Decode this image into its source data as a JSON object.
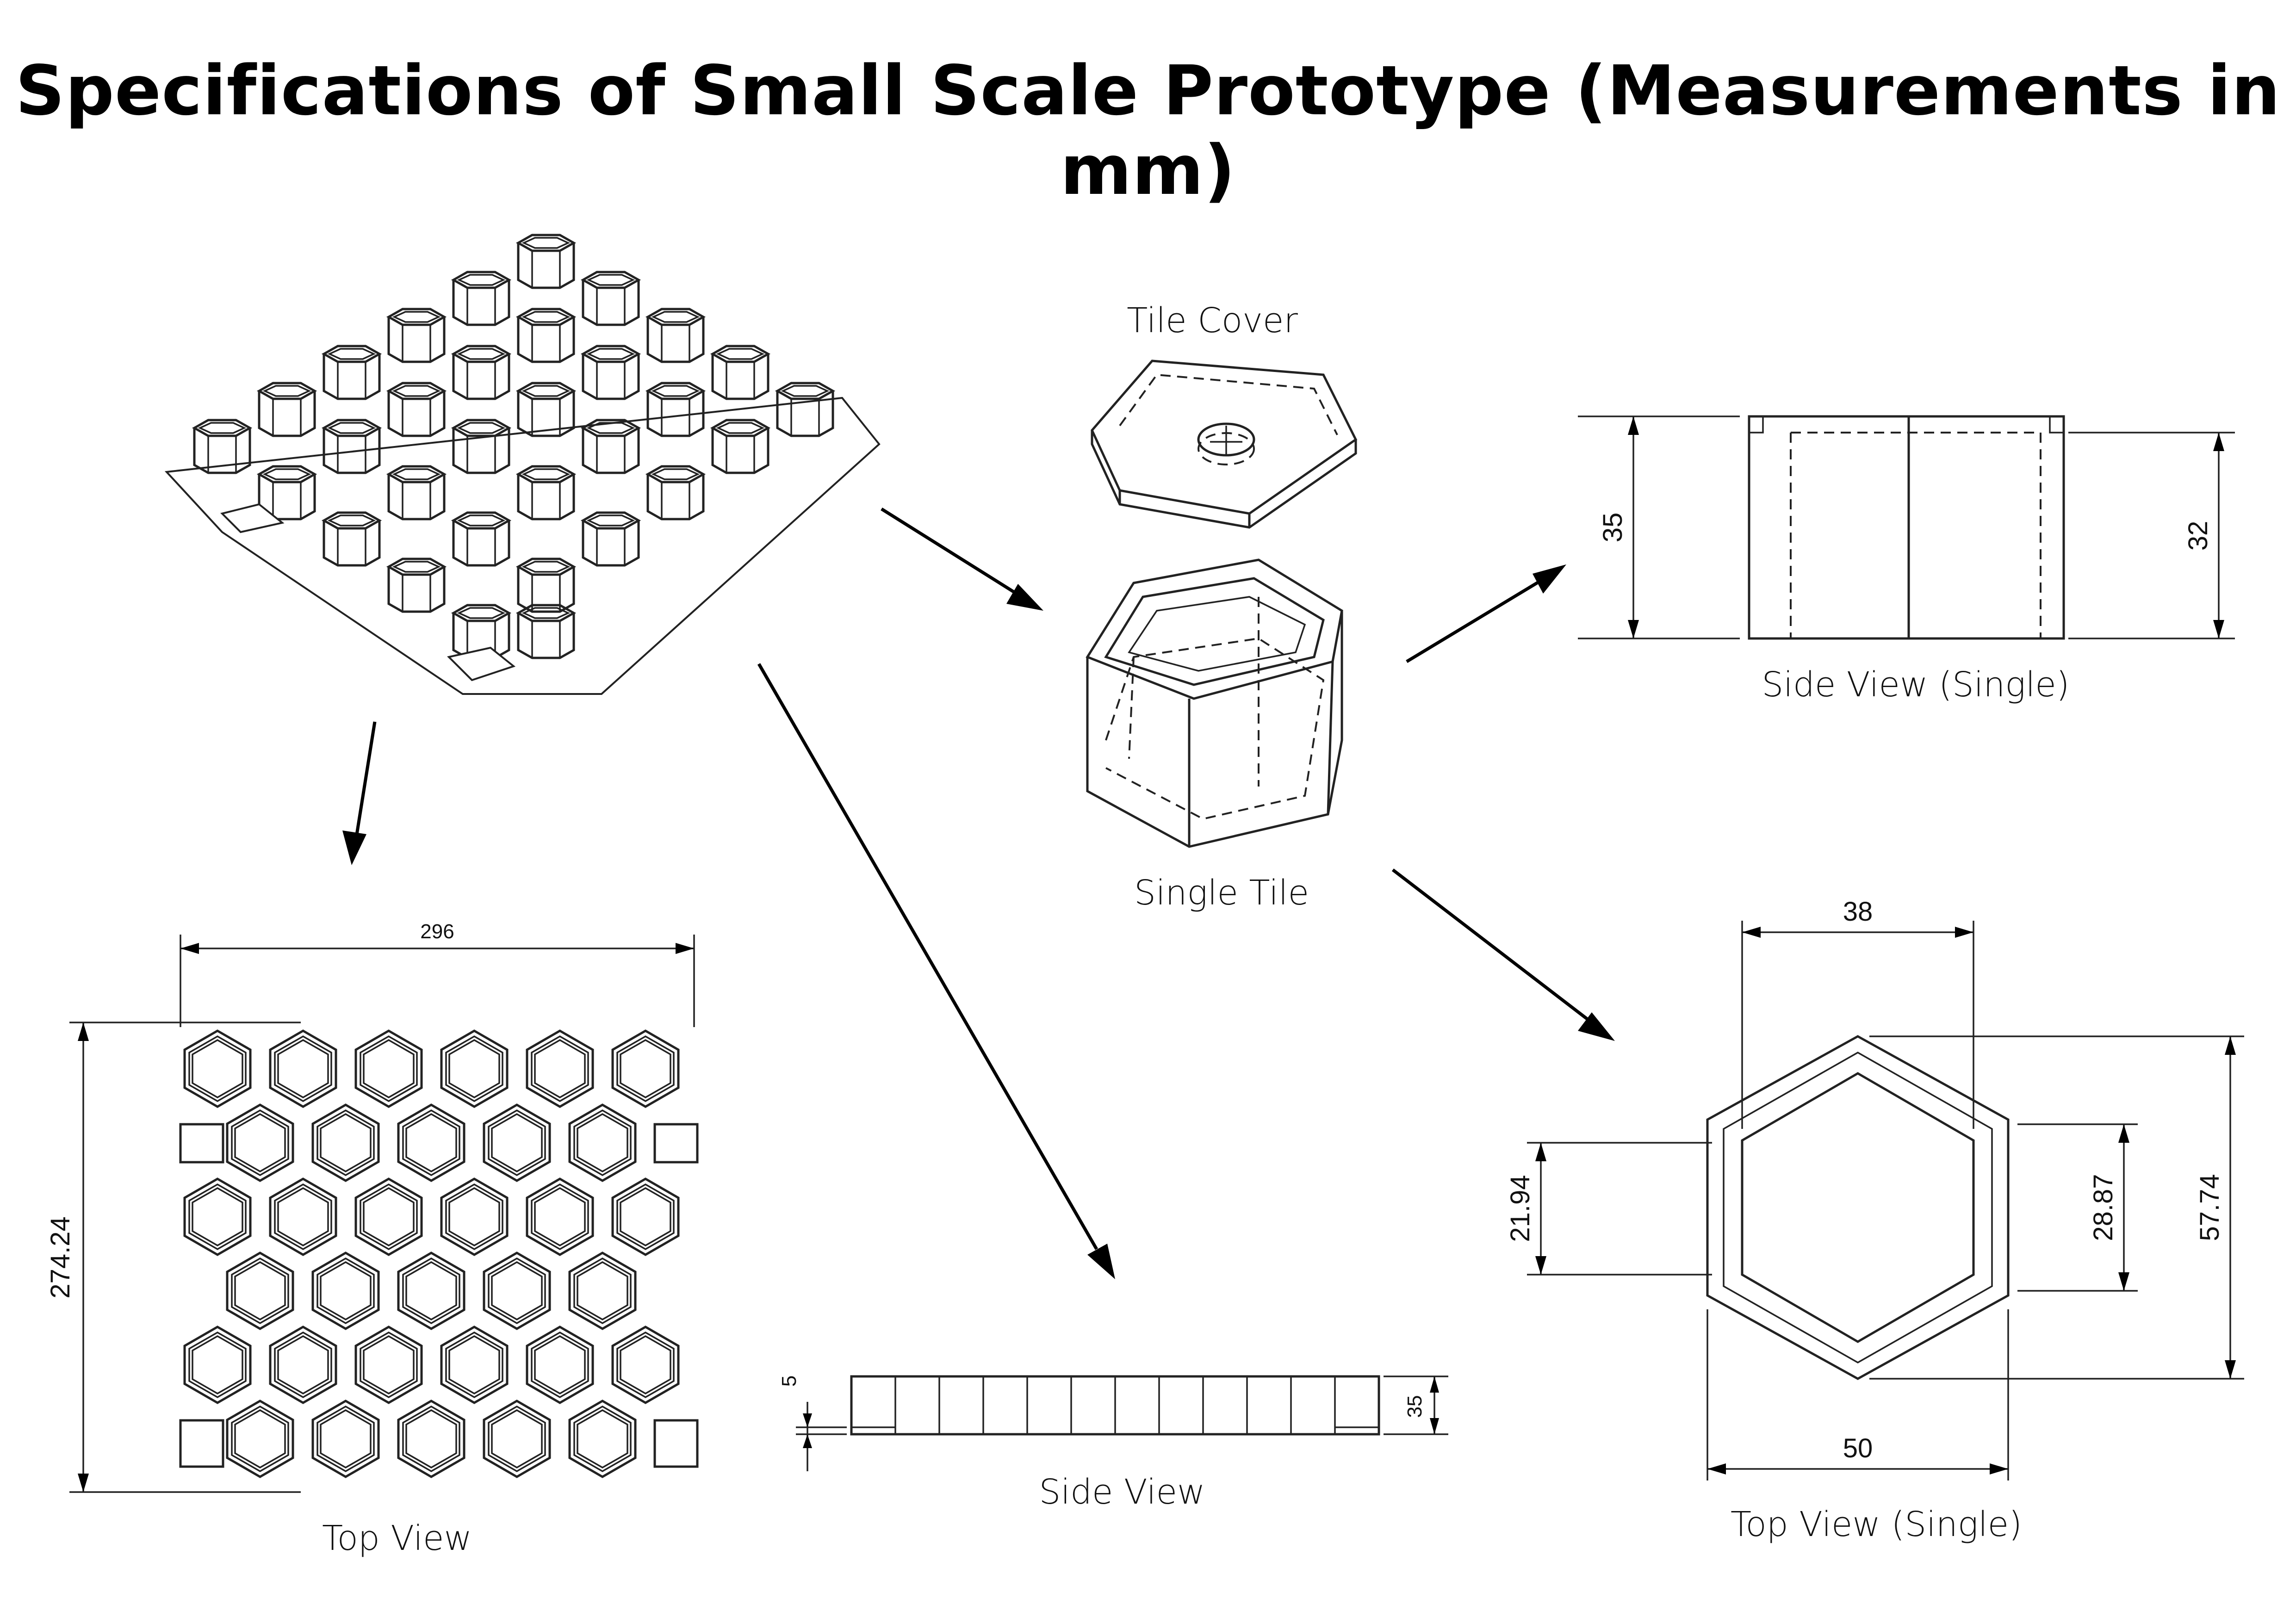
{
  "title": "Specifications of Small Scale Prototype (Measurements in mm)",
  "captions": {
    "tile_cover": "Tile Cover",
    "single_tile": "Single Tile",
    "side_view_single": "Side View (Single)",
    "top_view": "Top View",
    "side_view": "Side View",
    "top_view_single": "Top View (Single)"
  },
  "dimensions": {
    "top_view_width": "296",
    "top_view_height": "274.24",
    "side_view_gap": "5",
    "side_view_height": "35",
    "single_side_outer": "35",
    "single_side_inner": "32",
    "single_top_inner_width": "38",
    "single_top_outer_width": "50",
    "single_top_side": "21.94",
    "single_top_inner_height": "28.87",
    "single_top_outer_height": "57.74"
  }
}
